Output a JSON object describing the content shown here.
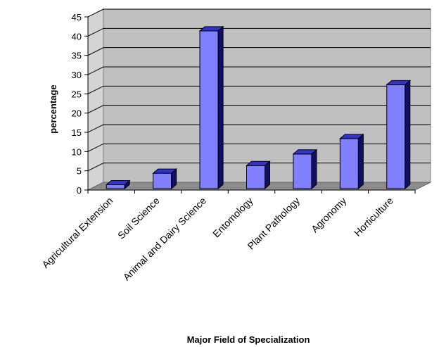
{
  "chart_data": {
    "type": "bar",
    "title": "",
    "xlabel": "Major Field of Specialization",
    "ylabel": "percentage",
    "categories": [
      "Agricultural Extension",
      "Soil Science",
      "Animal and Dairy Science",
      "Entomology",
      "Plant Pathology",
      "Agronomy",
      "Horticulture"
    ],
    "values": [
      1,
      4,
      41,
      6,
      9,
      13,
      27
    ],
    "ylim": [
      0,
      45
    ],
    "yticks": [
      0,
      5,
      10,
      15,
      20,
      25,
      30,
      35,
      40,
      45
    ],
    "grid": true,
    "legend": "none",
    "style": "3d-column"
  },
  "colors": {
    "bar_front": "#8080ff",
    "bar_top": "#3333cc",
    "bar_side": "#0f0f66",
    "wall": "#c0c0c0",
    "floor": "#8c8c8c",
    "gridline": "#000000"
  }
}
